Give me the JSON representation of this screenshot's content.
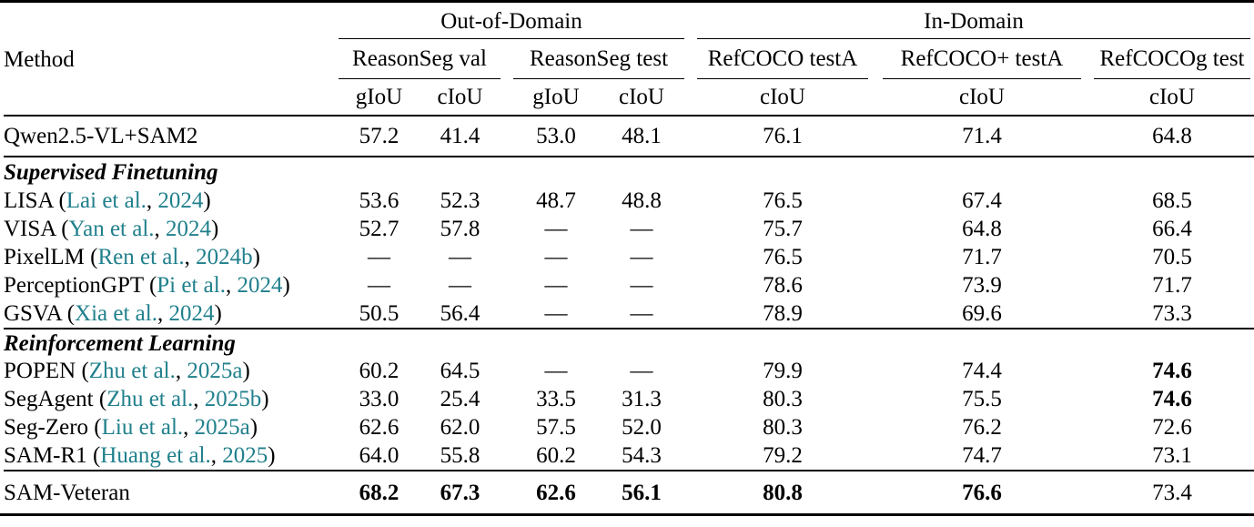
{
  "colors": {
    "citation_link": "#20808C",
    "text": "#000000",
    "background": "#ffffff"
  },
  "header": {
    "method": "Method",
    "groups": {
      "out_of_domain": "Out-of-Domain",
      "in_domain": "In-Domain"
    },
    "datasets": {
      "rs_val": "ReasonSeg val",
      "rs_test": "ReasonSeg test",
      "refcoco": "RefCOCO testA",
      "refcocop": "RefCOCO+ testA",
      "refcocog": "RefCOCOg test"
    },
    "metrics": {
      "giou": "gIoU",
      "ciou": "cIoU"
    }
  },
  "punct": {
    "open": "(",
    "sep": ",",
    "close": ")"
  },
  "rows": [
    {
      "name": "Qwen2.5-VL+SAM2",
      "v": [
        "57.2",
        "41.4",
        "53.0",
        "48.1",
        "76.1",
        "71.4",
        "64.8"
      ]
    },
    {
      "section": "Supervised Finetuning"
    },
    {
      "name": "LISA ",
      "cite_name": "Lai et al.",
      "cite_year": " 2024",
      "v": [
        "53.6",
        "52.3",
        "48.7",
        "48.8",
        "76.5",
        "67.4",
        "68.5"
      ]
    },
    {
      "name": "VISA ",
      "cite_name": "Yan et al.",
      "cite_year": " 2024",
      "v": [
        "52.7",
        "57.8",
        "—",
        "—",
        "75.7",
        "64.8",
        "66.4"
      ]
    },
    {
      "name": "PixelLM ",
      "cite_name": "Ren et al.",
      "cite_year": " 2024b",
      "v": [
        "—",
        "—",
        "—",
        "—",
        "76.5",
        "71.7",
        "70.5"
      ]
    },
    {
      "name": "PerceptionGPT ",
      "cite_name": "Pi et al.",
      "cite_year": " 2024",
      "v": [
        "—",
        "—",
        "—",
        "—",
        "78.6",
        "73.9",
        "71.7"
      ]
    },
    {
      "name": "GSVA ",
      "cite_name": "Xia et al.",
      "cite_year": " 2024",
      "v": [
        "50.5",
        "56.4",
        "—",
        "—",
        "78.9",
        "69.6",
        "73.3"
      ]
    },
    {
      "section": "Reinforcement Learning"
    },
    {
      "name": "POPEN ",
      "cite_name": "Zhu et al.",
      "cite_year": " 2025a",
      "v": [
        "60.2",
        "64.5",
        "—",
        "—",
        "79.9",
        "74.4",
        "74.6"
      ]
    },
    {
      "name": "SegAgent ",
      "cite_name": "Zhu et al.",
      "cite_year": " 2025b",
      "v": [
        "33.0",
        "25.4",
        "33.5",
        "31.3",
        "80.3",
        "75.5",
        "74.6"
      ]
    },
    {
      "name": "Seg-Zero ",
      "cite_name": "Liu et al.",
      "cite_year": " 2025a",
      "v": [
        "62.6",
        "62.0",
        "57.5",
        "52.0",
        "80.3",
        "76.2",
        "72.6"
      ]
    },
    {
      "name": "SAM-R1 ",
      "cite_name": "Huang et al.",
      "cite_year": " 2025",
      "v": [
        "64.0",
        "55.8",
        "60.2",
        "54.3",
        "79.2",
        "74.7",
        "73.1"
      ]
    },
    {
      "name": "SAM-Veteran",
      "v": [
        "68.2",
        "67.3",
        "62.6",
        "56.1",
        "80.8",
        "76.6",
        "73.4"
      ]
    }
  ]
}
